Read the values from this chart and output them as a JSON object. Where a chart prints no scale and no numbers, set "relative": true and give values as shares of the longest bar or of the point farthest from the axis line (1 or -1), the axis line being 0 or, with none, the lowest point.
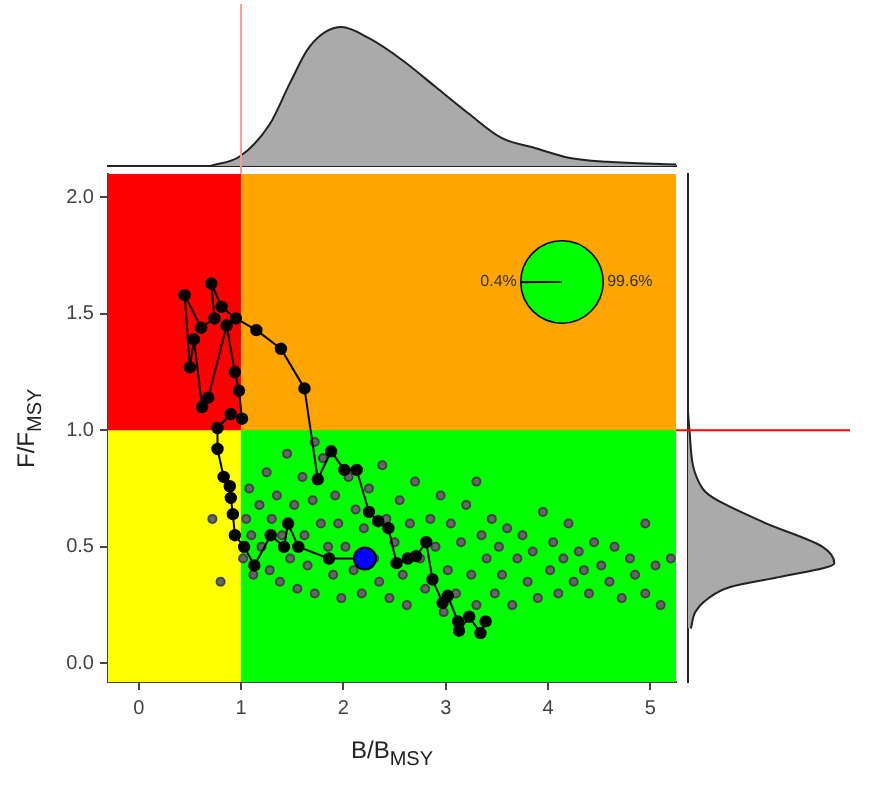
{
  "chart_data": [
    {
      "type": "scatter",
      "xlabel": "B/B$_{MSY}$",
      "ylabel": "F/F$_{MSY}$",
      "xlim": [
        -0.3,
        5.25
      ],
      "ylim": [
        -0.08,
        2.1
      ],
      "xticks": [
        0,
        1,
        2,
        3,
        4,
        5
      ],
      "yticks": [
        {
          "value": 0,
          "label": "0.0"
        },
        {
          "value": 0.5,
          "label": "0.5"
        },
        {
          "value": 1,
          "label": "1.0"
        },
        {
          "value": 1.5,
          "label": "1.5"
        },
        {
          "value": 2,
          "label": "2.0"
        }
      ],
      "grid": false,
      "legend": false,
      "marker": "circle",
      "bands": [
        {
          "axis": "x",
          "from": -0.3,
          "to": 1,
          "color": "#ffff00"
        },
        {
          "axis": "x",
          "from": 1,
          "to": 5.25,
          "color": "#00ff00"
        },
        {
          "axis": "y",
          "from": 1,
          "to": 2.1,
          "color": "#ff0000"
        },
        {
          "axis": "y",
          "from": 1,
          "to": 2.1,
          "color": "#ffa500"
        }
      ],
      "series": [
        {
          "type": "scatter",
          "color": "#666666",
          "x": [
            1.02,
            1.05,
            1.08,
            1.1,
            1.12,
            1.18,
            1.2,
            1.25,
            1.28,
            1.3,
            1.35,
            1.38,
            1.4,
            1.45,
            1.48,
            1.52,
            1.55,
            1.6,
            1.62,
            1.65,
            1.7,
            1.72,
            1.78,
            1.8,
            1.85,
            1.9,
            1.92,
            1.95,
            1.98,
            2.02,
            2.05,
            2.1,
            2.12,
            2.18,
            2.2,
            2.25,
            2.3,
            2.35,
            2.38,
            2.42,
            2.45,
            2.5,
            2.55,
            2.58,
            2.62,
            2.65,
            2.7,
            2.75,
            2.8,
            2.85,
            2.9,
            2.95,
            2.98,
            3.02,
            3.05,
            3.1,
            3.15,
            3.2,
            3.25,
            3.3,
            3.35,
            3.4,
            3.45,
            3.48,
            3.52,
            3.55,
            3.6,
            3.65,
            3.7,
            3.75,
            3.8,
            3.85,
            3.9,
            3.95,
            4.02,
            4.05,
            4.1,
            4.15,
            4.2,
            4.25,
            4.3,
            4.35,
            4.4,
            4.45,
            4.52,
            4.6,
            4.65,
            4.72,
            4.8,
            4.85,
            4.95,
            5.05,
            5.1,
            5.2,
            0.72,
            0.8,
            1.72,
            3.3,
            4.95
          ],
          "values": [
            0.45,
            0.62,
            0.75,
            0.55,
            0.38,
            0.68,
            0.5,
            0.82,
            0.4,
            0.62,
            0.72,
            0.35,
            0.55,
            0.9,
            0.45,
            0.68,
            0.32,
            0.8,
            0.55,
            0.42,
            0.7,
            0.3,
            0.6,
            0.88,
            0.5,
            0.38,
            0.72,
            0.6,
            0.28,
            0.5,
            0.8,
            0.4,
            0.66,
            0.3,
            0.58,
            0.75,
            0.45,
            0.35,
            0.85,
            0.62,
            0.28,
            0.52,
            0.7,
            0.38,
            0.25,
            0.6,
            0.78,
            0.45,
            0.32,
            0.62,
            0.5,
            0.72,
            0.22,
            0.4,
            0.6,
            0.3,
            0.52,
            0.68,
            0.38,
            0.25,
            0.55,
            0.45,
            0.62,
            0.3,
            0.5,
            0.38,
            0.58,
            0.25,
            0.45,
            0.55,
            0.35,
            0.48,
            0.28,
            0.65,
            0.4,
            0.52,
            0.3,
            0.45,
            0.6,
            0.35,
            0.48,
            0.4,
            0.3,
            0.52,
            0.42,
            0.35,
            0.5,
            0.28,
            0.45,
            0.38,
            0.3,
            0.42,
            0.25,
            0.45,
            0.62,
            0.35,
            0.95,
            0.78,
            0.6
          ]
        },
        {
          "type": "line",
          "color": "#000000",
          "x": [
            3.39,
            3.34,
            3.23,
            3.13,
            3.12,
            3.02,
            2.97,
            2.87,
            2.81,
            2.71,
            2.63,
            2.52,
            2.44,
            2.34,
            2.25,
            2.13,
            2.01,
            1.88,
            1.75,
            1.62,
            1.39,
            1.15,
            0.95,
            0.81,
            0.71,
            0.74,
            0.61,
            0.45,
            0.5,
            0.54,
            0.62,
            0.68,
            0.86,
            0.94,
            0.98,
            1.01,
            0.9,
            0.77,
            0.77,
            0.83,
            0.89,
            0.9,
            0.92,
            0.94,
            1.03,
            1.13,
            1.29,
            1.42,
            1.46,
            1.56,
            1.86,
            2.21
          ],
          "values": [
            0.18,
            0.13,
            0.2,
            0.14,
            0.18,
            0.29,
            0.26,
            0.36,
            0.52,
            0.46,
            0.45,
            0.43,
            0.58,
            0.61,
            0.65,
            0.83,
            0.83,
            0.91,
            0.79,
            1.18,
            1.35,
            1.43,
            1.48,
            1.53,
            1.63,
            1.48,
            1.44,
            1.58,
            1.27,
            1.39,
            1.1,
            1.14,
            1.45,
            1.25,
            1.17,
            1.05,
            1.07,
            1.01,
            0.92,
            0.8,
            0.76,
            0.71,
            0.64,
            0.55,
            0.5,
            0.42,
            0.55,
            0.5,
            0.6,
            0.5,
            0.45,
            0.45
          ]
        },
        {
          "type": "scatter",
          "color": "#0000ff",
          "x": [
            2.21
          ],
          "values": [
            0.45
          ]
        }
      ]
    },
    {
      "type": "area",
      "relative": true,
      "xlim": [
        -0.3,
        5.25
      ],
      "tick_labels": false,
      "legend": false,
      "color": "#aaaaaa",
      "x": [
        0.7,
        0.99,
        1.28,
        1.48,
        1.67,
        1.98,
        2.25,
        2.58,
        2.9,
        3.22,
        3.55,
        3.87,
        4.2,
        4.58,
        5.25
      ],
      "values": [
        0,
        0.07,
        0.3,
        0.6,
        0.86,
        1,
        0.92,
        0.76,
        0.57,
        0.38,
        0.2,
        0.13,
        0.06,
        0.03,
        0.01
      ],
      "ref_lines": [
        {
          "axis": "x",
          "value": 1,
          "color": "#ff9999"
        }
      ]
    },
    {
      "type": "area",
      "relative": true,
      "orientation": "horizontal",
      "ylim": [
        -0.08,
        2.1
      ],
      "tick_labels": false,
      "legend": false,
      "color": "#aaaaaa",
      "x": [
        1.08,
        1.0,
        0.75,
        0.61,
        0.5,
        0.43,
        0.37,
        0.33,
        0.27,
        0.22,
        0.15
      ],
      "values": [
        0,
        0.01,
        0.1,
        0.5,
        0.92,
        1,
        0.62,
        0.3,
        0.12,
        0.05,
        0.02
      ],
      "ref_lines": [
        {
          "axis": "y",
          "value": 1,
          "color": "#ff0000"
        }
      ]
    },
    {
      "type": "pie",
      "categories": [
        null,
        null
      ],
      "values": [
        0.4,
        99.6
      ],
      "colors": [
        "#000000",
        "#00ff00"
      ],
      "value_labels": [
        "0.4%",
        "99.6%"
      ],
      "legend": false
    }
  ]
}
